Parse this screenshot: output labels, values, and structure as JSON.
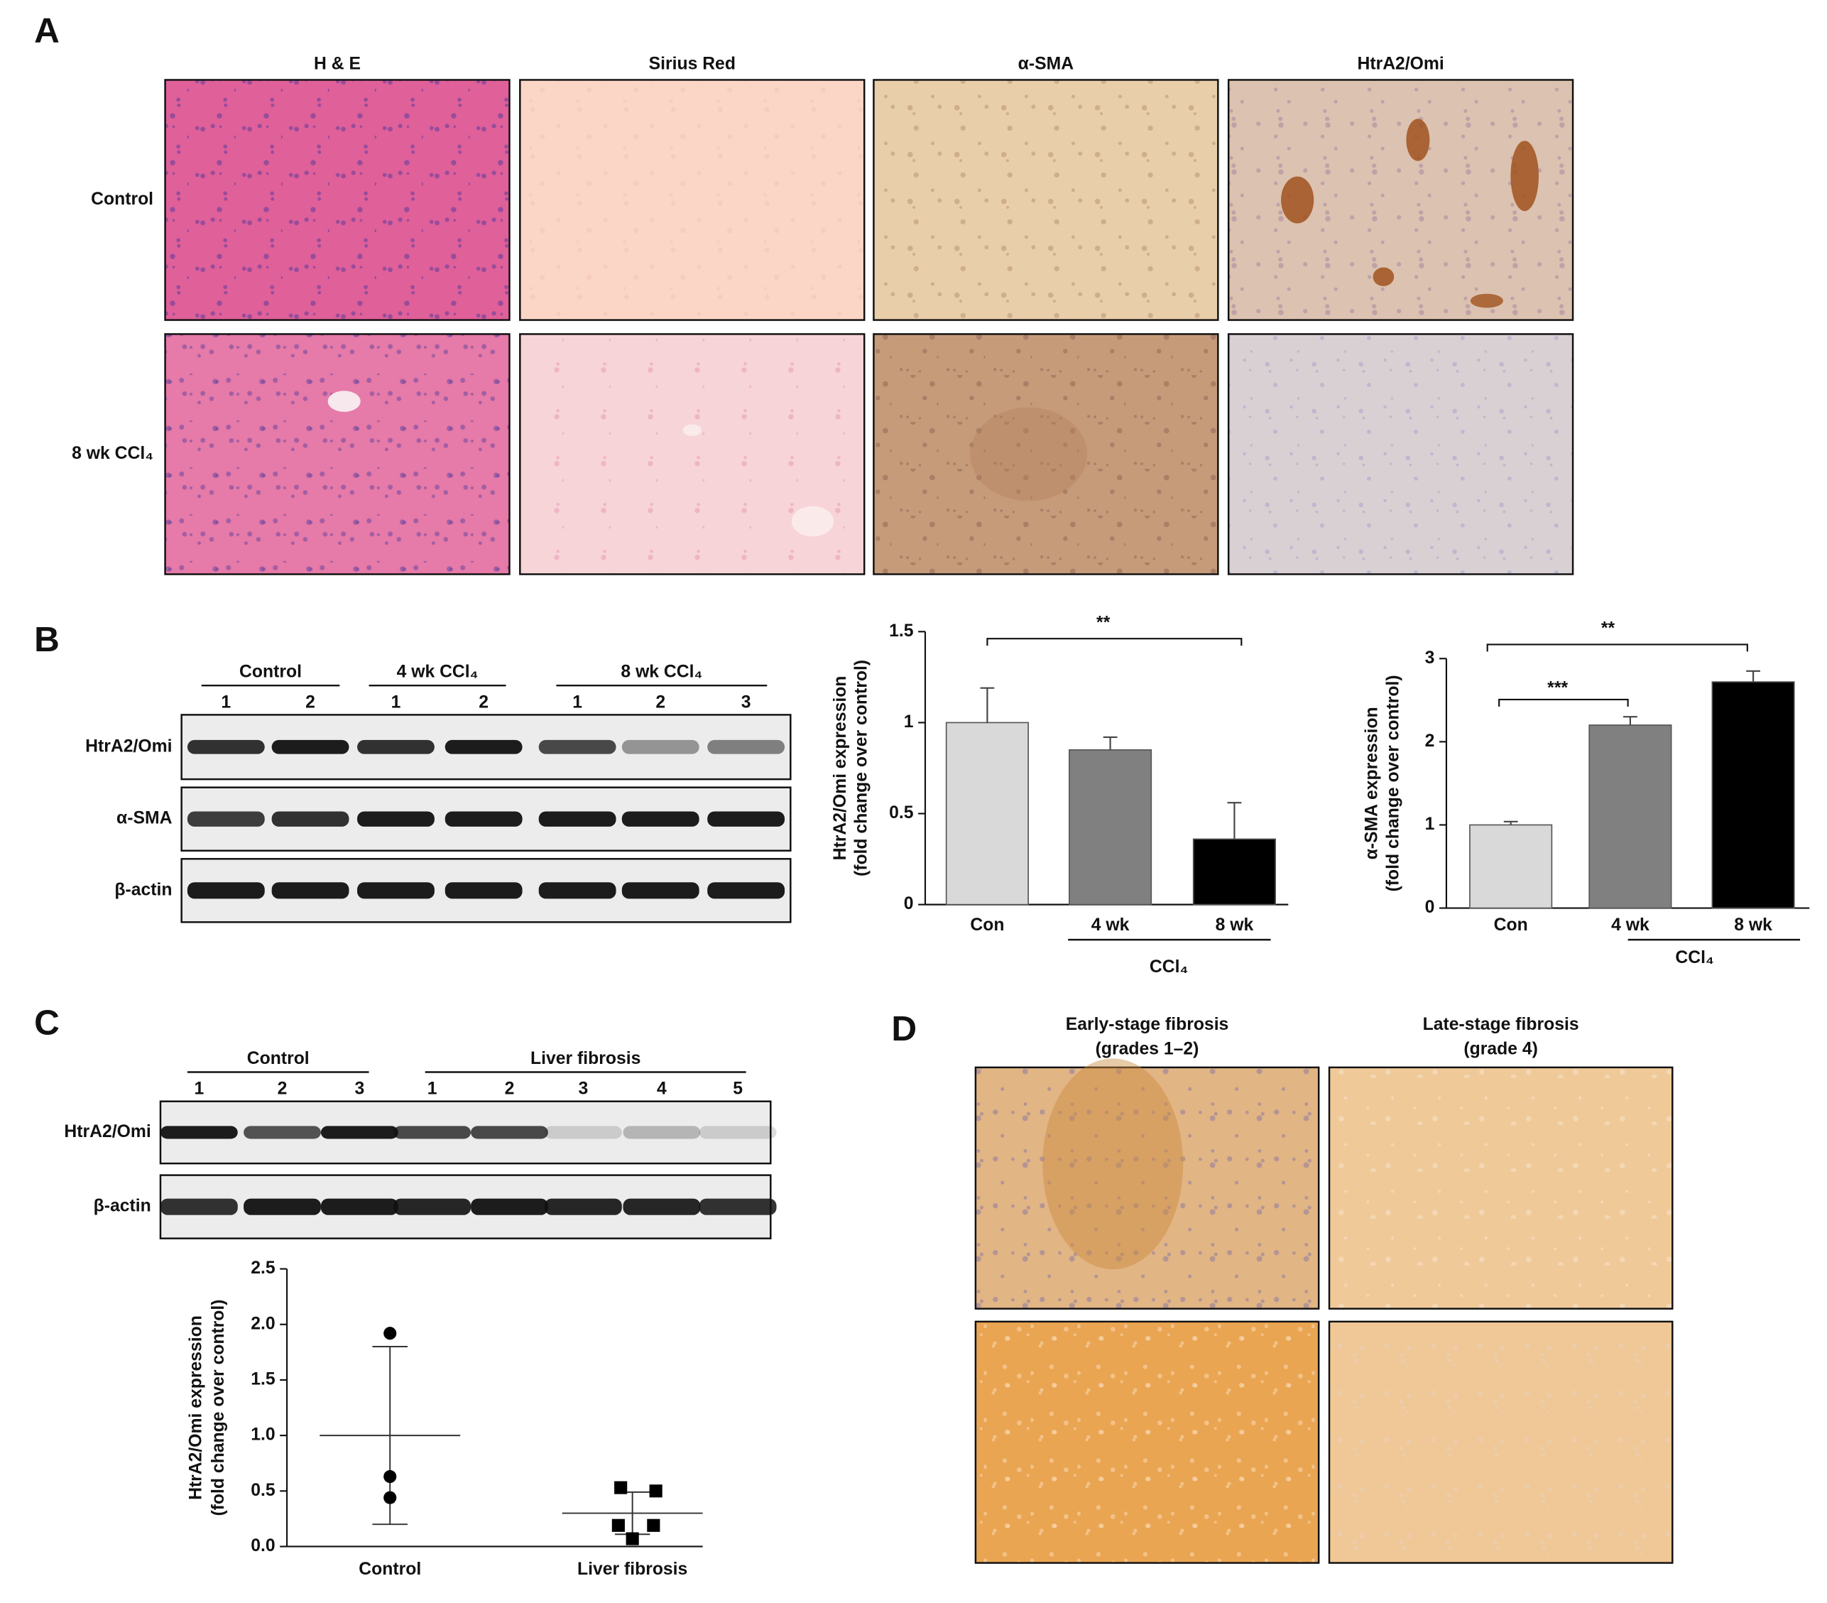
{
  "panel_a": {
    "label": "A",
    "columns": [
      "H & E",
      "Sirius Red",
      "α-SMA",
      "HtrA2/Omi"
    ],
    "rows": [
      "Control",
      "8 wk CCl₄"
    ]
  },
  "panel_b": {
    "label": "B",
    "blot": {
      "groups": [
        {
          "name": "Control",
          "lanes": [
            1,
            2
          ]
        },
        {
          "name": "4 wk CCl₄",
          "lanes": [
            1,
            2
          ]
        },
        {
          "name": "8 wk CCl₄",
          "lanes": [
            1,
            2,
            3
          ]
        }
      ],
      "rows": [
        "HtrA2/Omi",
        "α-SMA",
        "β-actin"
      ]
    }
  },
  "panel_c": {
    "label": "C",
    "blot": {
      "groups": [
        {
          "name": "Control",
          "lanes": [
            1,
            2,
            3
          ]
        },
        {
          "name": "Liver fibrosis",
          "lanes": [
            1,
            2,
            3,
            4,
            5
          ]
        }
      ],
      "rows": [
        "HtrA2/Omi",
        "β-actin"
      ]
    }
  },
  "panel_d": {
    "label": "D",
    "columns": [
      {
        "title": "Early-stage fibrosis",
        "subtitle": "(grades 1–2)"
      },
      {
        "title": "Late-stage fibrosis",
        "subtitle": "(grade 4)"
      }
    ]
  },
  "chart_data": [
    {
      "type": "bar",
      "y_label": [
        "HtrA2/Omi expression",
        "(fold change over control)"
      ],
      "categories": [
        "Con",
        "4 wk",
        "8 wk"
      ],
      "values": [
        1.0,
        0.85,
        0.36
      ],
      "errors": [
        0.19,
        0.07,
        0.2
      ],
      "colors": [
        "#d9d9d9",
        "#808080",
        "#000000"
      ],
      "ylim": [
        0,
        1.5
      ],
      "yticks": [
        0,
        0.5,
        1,
        1.5
      ],
      "group_label": "CCl₄",
      "annotations": [
        "**"
      ]
    },
    {
      "type": "bar",
      "y_label": [
        "α-SMA expression",
        "(fold change over control)"
      ],
      "categories": [
        "Con",
        "4 wk",
        "8 wk"
      ],
      "values": [
        1.0,
        2.2,
        2.72
      ],
      "errors": [
        0.04,
        0.1,
        0.13
      ],
      "colors": [
        "#d9d9d9",
        "#808080",
        "#000000"
      ],
      "ylim": [
        0,
        3
      ],
      "yticks": [
        0,
        1,
        2,
        3
      ],
      "group_label": "CCl₄",
      "annotations": [
        "***",
        "**"
      ]
    },
    {
      "type": "strip",
      "y_label": [
        "HtrA2/Omi expression",
        "(fold change over control)"
      ],
      "groups": [
        {
          "label": "Control",
          "marker": "circle",
          "values": [
            1.92,
            0.63,
            0.44
          ],
          "mean": 1.0,
          "sd": 0.8
        },
        {
          "label": "Liver fibrosis",
          "marker": "square",
          "values": [
            0.53,
            0.5,
            0.19,
            0.19,
            0.07
          ],
          "mean": 0.3,
          "sd": 0.19
        }
      ],
      "ylim": [
        0,
        2.5
      ],
      "yticks": [
        {
          "value": 0,
          "label": "0.0"
        },
        {
          "value": 0.5,
          "label": "0.5"
        },
        {
          "value": 1,
          "label": "1.0"
        },
        {
          "value": 1.5,
          "label": "1.5"
        },
        {
          "value": 2,
          "label": "2.0"
        },
        {
          "value": 2.5,
          "label": "2.5"
        }
      ]
    }
  ]
}
